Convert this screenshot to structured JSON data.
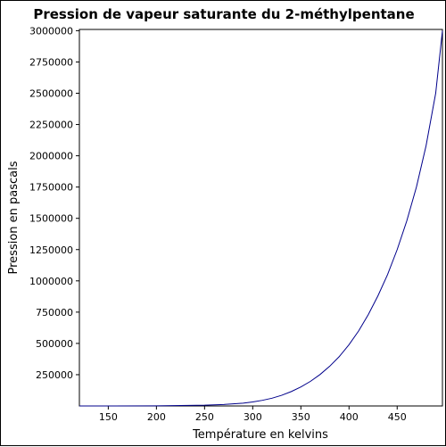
{
  "chart_data": {
    "type": "line",
    "title": "Pression de vapeur saturante du 2-méthylpentane",
    "xlabel": "Température en kelvins",
    "ylabel": "Pression en pascals",
    "xlim": [
      120,
      497
    ],
    "ylim": [
      0,
      3010000
    ],
    "x_ticks": [
      150,
      200,
      250,
      300,
      350,
      400,
      450
    ],
    "y_ticks": [
      250000,
      500000,
      750000,
      1000000,
      1250000,
      1500000,
      1750000,
      2000000,
      2250000,
      2500000,
      2750000,
      3000000
    ],
    "grid": false,
    "legend": "none",
    "series": [
      {
        "color": "#00008b",
        "x": [
          120,
          150,
          200,
          250,
          270,
          290,
          300,
          310,
          320,
          330,
          340,
          350,
          360,
          370,
          380,
          390,
          400,
          410,
          420,
          430,
          440,
          450,
          460,
          470,
          480,
          490,
          497
        ],
        "y": [
          0,
          100,
          1000,
          6000,
          12000,
          22000,
          32000,
          45000,
          62000,
          85000,
          115000,
          152000,
          197000,
          252000,
          318000,
          396000,
          490000,
          600000,
          730000,
          880000,
          1050000,
          1250000,
          1480000,
          1750000,
          2080000,
          2500000,
          3000000
        ]
      }
    ]
  }
}
